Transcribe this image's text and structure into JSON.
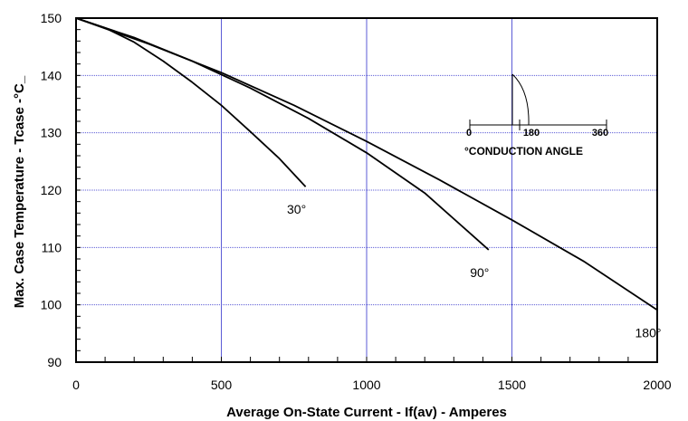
{
  "chart_data": {
    "type": "line",
    "title": "",
    "xlabel": "Average On-State Current - If(av) - Amperes",
    "ylabel": "Max. Case Temperature - Tcase -°C_",
    "xlim": [
      0,
      2000
    ],
    "ylim": [
      90,
      150
    ],
    "x_ticks": [
      "0",
      "500",
      "1000",
      "1500",
      "2000"
    ],
    "y_ticks": [
      "90",
      "100",
      "110",
      "120",
      "130",
      "140",
      "150"
    ],
    "grid": true,
    "series": [
      {
        "name": "30°",
        "x": [
          0,
          100,
          200,
          300,
          400,
          500,
          600,
          700,
          790
        ],
        "y": [
          150,
          148.3,
          145.8,
          142.5,
          138.8,
          134.8,
          130.2,
          125.5,
          120.6
        ]
      },
      {
        "name": "90°",
        "x": [
          0,
          200,
          400,
          600,
          800,
          1000,
          1200,
          1420
        ],
        "y": [
          150,
          146.6,
          142.5,
          137.8,
          132.5,
          126.5,
          119.5,
          109.6
        ]
      },
      {
        "name": "180°",
        "x": [
          0,
          250,
          500,
          750,
          1000,
          1250,
          1500,
          1750,
          2000
        ],
        "y": [
          150,
          145.5,
          140.5,
          134.8,
          128.5,
          121.8,
          114.8,
          107.5,
          99.1
        ]
      }
    ],
    "inset": {
      "scale_labels": [
        "0",
        "180",
        "360"
      ],
      "title": "°CONDUCTION ANGLE"
    }
  }
}
